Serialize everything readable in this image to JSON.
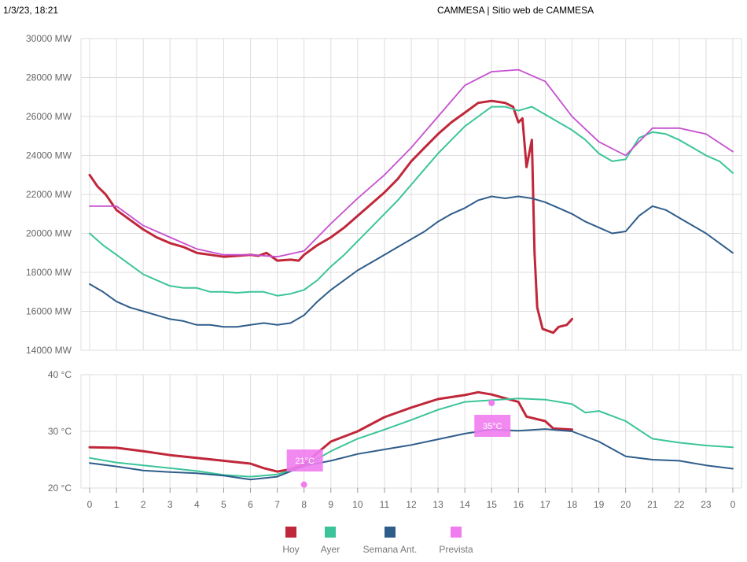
{
  "header": {
    "timestamp": "1/3/23, 18:21",
    "page_title": "CAMMESA | Sitio web de CAMMESA"
  },
  "colors": {
    "hoy": "#c0273a",
    "ayer": "#3bc49a",
    "semana_ant": "#2f5d8a",
    "prevista": "#c64fd0",
    "prevista_badge": "#f07cf0",
    "grid": "#dddddd"
  },
  "chart_data": [
    {
      "type": "line",
      "title": "",
      "xlabel": "",
      "ylabel": "",
      "ylim": [
        14000,
        30000
      ],
      "y_ticks": [
        "14000 MW",
        "16000 MW",
        "18000 MW",
        "20000 MW",
        "22000 MW",
        "24000 MW",
        "26000 MW",
        "28000 MW",
        "30000 MW"
      ],
      "x_ticks": [
        "0",
        "1",
        "2",
        "3",
        "4",
        "5",
        "6",
        "7",
        "8",
        "9",
        "10",
        "11",
        "12",
        "13",
        "14",
        "15",
        "16",
        "17",
        "18",
        "19",
        "20",
        "21",
        "22",
        "23",
        "0"
      ],
      "grid": true,
      "series": [
        {
          "name": "Hoy",
          "key": "hoy",
          "points": [
            [
              0,
              23000
            ],
            [
              0.1,
              22800
            ],
            [
              0.3,
              22400
            ],
            [
              0.6,
              22000
            ],
            [
              1,
              21200
            ],
            [
              1.5,
              20700
            ],
            [
              2,
              20200
            ],
            [
              2.5,
              19800
            ],
            [
              3,
              19500
            ],
            [
              3.5,
              19300
            ],
            [
              4,
              19000
            ],
            [
              4.5,
              18900
            ],
            [
              5,
              18800
            ],
            [
              5.5,
              18850
            ],
            [
              6,
              18900
            ],
            [
              6.3,
              18850
            ],
            [
              6.6,
              19000
            ],
            [
              7,
              18600
            ],
            [
              7.5,
              18650
            ],
            [
              7.8,
              18600
            ],
            [
              8,
              18900
            ],
            [
              8.5,
              19400
            ],
            [
              9,
              19800
            ],
            [
              9.5,
              20300
            ],
            [
              10,
              20900
            ],
            [
              10.5,
              21500
            ],
            [
              11,
              22100
            ],
            [
              11.5,
              22800
            ],
            [
              12,
              23700
            ],
            [
              12.5,
              24400
            ],
            [
              13,
              25100
            ],
            [
              13.5,
              25700
            ],
            [
              14,
              26200
            ],
            [
              14.5,
              26700
            ],
            [
              15,
              26800
            ],
            [
              15.5,
              26700
            ],
            [
              15.8,
              26500
            ],
            [
              16,
              25700
            ],
            [
              16.15,
              25900
            ],
            [
              16.3,
              23400
            ],
            [
              16.5,
              24800
            ],
            [
              16.6,
              19000
            ],
            [
              16.7,
              16200
            ],
            [
              16.9,
              15100
            ],
            [
              17.1,
              15000
            ],
            [
              17.3,
              14900
            ],
            [
              17.5,
              15200
            ],
            [
              17.8,
              15300
            ],
            [
              18,
              15600
            ]
          ]
        },
        {
          "name": "Ayer",
          "key": "ayer",
          "points": [
            [
              0,
              20000
            ],
            [
              0.5,
              19400
            ],
            [
              1,
              18900
            ],
            [
              1.5,
              18400
            ],
            [
              2,
              17900
            ],
            [
              2.5,
              17600
            ],
            [
              3,
              17300
            ],
            [
              3.5,
              17200
            ],
            [
              4,
              17200
            ],
            [
              4.5,
              17000
            ],
            [
              5,
              17000
            ],
            [
              5.5,
              16950
            ],
            [
              6,
              17000
            ],
            [
              6.5,
              17000
            ],
            [
              7,
              16800
            ],
            [
              7.5,
              16900
            ],
            [
              8,
              17100
            ],
            [
              8.5,
              17600
            ],
            [
              9,
              18300
            ],
            [
              9.5,
              18900
            ],
            [
              10,
              19600
            ],
            [
              10.5,
              20300
            ],
            [
              11,
              21000
            ],
            [
              11.5,
              21700
            ],
            [
              12,
              22500
            ],
            [
              12.5,
              23300
            ],
            [
              13,
              24100
            ],
            [
              13.5,
              24800
            ],
            [
              14,
              25500
            ],
            [
              14.5,
              26000
            ],
            [
              15,
              26500
            ],
            [
              15.5,
              26500
            ],
            [
              16,
              26300
            ],
            [
              16.5,
              26500
            ],
            [
              17,
              26100
            ],
            [
              17.5,
              25700
            ],
            [
              18,
              25300
            ],
            [
              18.5,
              24800
            ],
            [
              19,
              24100
            ],
            [
              19.5,
              23700
            ],
            [
              20,
              23800
            ],
            [
              20.5,
              24900
            ],
            [
              21,
              25200
            ],
            [
              21.5,
              25100
            ],
            [
              22,
              24800
            ],
            [
              22.5,
              24400
            ],
            [
              23,
              24000
            ],
            [
              23.5,
              23700
            ],
            [
              24,
              23100
            ]
          ]
        },
        {
          "name": "Semana Ant.",
          "key": "semana_ant",
          "points": [
            [
              0,
              17400
            ],
            [
              0.5,
              17000
            ],
            [
              1,
              16500
            ],
            [
              1.5,
              16200
            ],
            [
              2,
              16000
            ],
            [
              2.5,
              15800
            ],
            [
              3,
              15600
            ],
            [
              3.5,
              15500
            ],
            [
              4,
              15300
            ],
            [
              4.5,
              15300
            ],
            [
              5,
              15200
            ],
            [
              5.5,
              15200
            ],
            [
              6,
              15300
            ],
            [
              6.5,
              15400
            ],
            [
              7,
              15300
            ],
            [
              7.5,
              15400
            ],
            [
              8,
              15800
            ],
            [
              8.5,
              16500
            ],
            [
              9,
              17100
            ],
            [
              9.5,
              17600
            ],
            [
              10,
              18100
            ],
            [
              10.5,
              18500
            ],
            [
              11,
              18900
            ],
            [
              11.5,
              19300
            ],
            [
              12,
              19700
            ],
            [
              12.5,
              20100
            ],
            [
              13,
              20600
            ],
            [
              13.5,
              21000
            ],
            [
              14,
              21300
            ],
            [
              14.5,
              21700
            ],
            [
              15,
              21900
            ],
            [
              15.5,
              21800
            ],
            [
              16,
              21900
            ],
            [
              16.5,
              21800
            ],
            [
              17,
              21600
            ],
            [
              17.5,
              21300
            ],
            [
              18,
              21000
            ],
            [
              18.5,
              20600
            ],
            [
              19,
              20300
            ],
            [
              19.5,
              20000
            ],
            [
              20,
              20100
            ],
            [
              20.5,
              20900
            ],
            [
              21,
              21400
            ],
            [
              21.5,
              21200
            ],
            [
              22,
              20800
            ],
            [
              22.5,
              20400
            ],
            [
              23,
              20000
            ],
            [
              23.5,
              19500
            ],
            [
              24,
              19000
            ]
          ]
        },
        {
          "name": "Prevista",
          "key": "prevista",
          "points": [
            [
              0,
              21400
            ],
            [
              1,
              21400
            ],
            [
              2,
              20400
            ],
            [
              3,
              19800
            ],
            [
              4,
              19200
            ],
            [
              5,
              18900
            ],
            [
              6,
              18900
            ],
            [
              7,
              18800
            ],
            [
              8,
              19100
            ],
            [
              9,
              20500
            ],
            [
              10,
              21800
            ],
            [
              11,
              23000
            ],
            [
              12,
              24400
            ],
            [
              13,
              26000
            ],
            [
              14,
              27600
            ],
            [
              15,
              28300
            ],
            [
              16,
              28400
            ],
            [
              17,
              27800
            ],
            [
              18,
              26000
            ],
            [
              19,
              24700
            ],
            [
              20,
              24000
            ],
            [
              21,
              25400
            ],
            [
              22,
              25400
            ],
            [
              23,
              25100
            ],
            [
              24,
              24200
            ]
          ]
        }
      ]
    },
    {
      "type": "line",
      "title": "",
      "xlabel": "",
      "ylabel": "",
      "ylim": [
        20,
        40
      ],
      "y_ticks": [
        "20 °C",
        "30 °C",
        "40 °C"
      ],
      "x_ticks": [
        "0",
        "1",
        "2",
        "3",
        "4",
        "5",
        "6",
        "7",
        "8",
        "9",
        "10",
        "11",
        "12",
        "13",
        "14",
        "15",
        "16",
        "17",
        "18",
        "19",
        "20",
        "21",
        "22",
        "23",
        "0"
      ],
      "grid": true,
      "series": [
        {
          "name": "Hoy",
          "key": "hoy",
          "points": [
            [
              0,
              27.2
            ],
            [
              1,
              27.1
            ],
            [
              2,
              26.5
            ],
            [
              3,
              25.8
            ],
            [
              4,
              25.3
            ],
            [
              5,
              24.8
            ],
            [
              6,
              24.3
            ],
            [
              6.5,
              23.5
            ],
            [
              7,
              22.9
            ],
            [
              7.5,
              23.3
            ],
            [
              8,
              24.2
            ],
            [
              8.5,
              26.2
            ],
            [
              9,
              28.2
            ],
            [
              10,
              30.0
            ],
            [
              11,
              32.5
            ],
            [
              12,
              34.2
            ],
            [
              13,
              35.7
            ],
            [
              14,
              36.4
            ],
            [
              14.5,
              36.9
            ],
            [
              15,
              36.5
            ],
            [
              16,
              35.2
            ],
            [
              16.3,
              32.6
            ],
            [
              17,
              31.8
            ],
            [
              17.3,
              30.5
            ],
            [
              18,
              30.3
            ]
          ]
        },
        {
          "name": "Ayer",
          "key": "ayer",
          "points": [
            [
              0,
              25.3
            ],
            [
              1,
              24.5
            ],
            [
              2,
              24.0
            ],
            [
              3,
              23.5
            ],
            [
              4,
              23.0
            ],
            [
              5,
              22.3
            ],
            [
              6,
              22.0
            ],
            [
              7,
              22.4
            ],
            [
              8,
              23.8
            ],
            [
              9,
              26.5
            ],
            [
              10,
              28.7
            ],
            [
              11,
              30.3
            ],
            [
              12,
              32.0
            ],
            [
              13,
              33.8
            ],
            [
              14,
              35.2
            ],
            [
              15,
              35.5
            ],
            [
              16,
              35.8
            ],
            [
              17,
              35.6
            ],
            [
              18,
              34.8
            ],
            [
              18.5,
              33.3
            ],
            [
              19,
              33.6
            ],
            [
              20,
              31.8
            ],
            [
              21,
              28.7
            ],
            [
              22,
              28.0
            ],
            [
              23,
              27.5
            ],
            [
              24,
              27.2
            ]
          ]
        },
        {
          "name": "Semana Ant.",
          "key": "semana_ant",
          "points": [
            [
              0,
              24.4
            ],
            [
              1,
              23.8
            ],
            [
              2,
              23.1
            ],
            [
              3,
              22.8
            ],
            [
              4,
              22.6
            ],
            [
              5,
              22.2
            ],
            [
              6,
              21.5
            ],
            [
              7,
              22.0
            ],
            [
              8,
              23.9
            ],
            [
              9,
              24.8
            ],
            [
              10,
              26.0
            ],
            [
              11,
              26.8
            ],
            [
              12,
              27.6
            ],
            [
              13,
              28.6
            ],
            [
              14,
              29.6
            ],
            [
              15,
              30.3
            ],
            [
              16,
              30.1
            ],
            [
              17,
              30.4
            ],
            [
              18,
              30.0
            ],
            [
              19,
              28.2
            ],
            [
              20,
              25.6
            ],
            [
              21,
              25.0
            ],
            [
              22,
              24.8
            ],
            [
              23,
              24.0
            ],
            [
              24,
              23.4
            ]
          ]
        }
      ],
      "annotations": [
        {
          "series": "Prevista",
          "x": 8,
          "y": 20.6,
          "label": "21°C"
        },
        {
          "series": "Prevista",
          "x": 15,
          "y": 35.0,
          "label": "35°C"
        }
      ]
    }
  ],
  "legend": [
    {
      "key": "hoy",
      "label": "Hoy"
    },
    {
      "key": "ayer",
      "label": "Ayer"
    },
    {
      "key": "semana_ant",
      "label": "Semana Ant."
    },
    {
      "key": "prevista",
      "label": "Prevista"
    }
  ]
}
